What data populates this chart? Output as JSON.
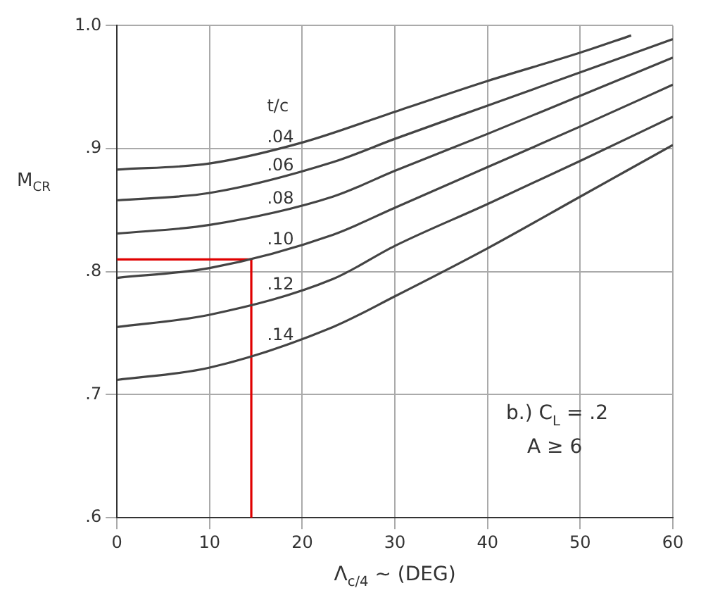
{
  "chart_data": {
    "type": "line",
    "xlabel": "Λ$_{c/4}$ ~ (DEG)",
    "ylabel": "M$_{CR}$",
    "legend_title": "t/c",
    "annotations": [
      "b.) C$_{L}$ = .2",
      "A ≥ 6"
    ],
    "series": [
      {
        "name": ".04",
        "color": "#444444",
        "x": [
          0,
          10,
          20,
          30,
          40,
          50,
          55.5
        ],
        "values": [
          0.883,
          0.888,
          0.905,
          0.93,
          0.955,
          0.978,
          0.992
        ]
      },
      {
        "name": ".06",
        "color": "#444444",
        "x": [
          0,
          10,
          23.3,
          30,
          40,
          50,
          60
        ],
        "values": [
          0.858,
          0.864,
          0.889,
          0.908,
          0.935,
          0.962,
          0.989
        ]
      },
      {
        "name": ".08",
        "color": "#444444",
        "x": [
          0,
          10,
          23.3,
          30,
          40,
          50,
          60
        ],
        "values": [
          0.831,
          0.838,
          0.861,
          0.882,
          0.912,
          0.943,
          0.974
        ]
      },
      {
        "name": ".10",
        "color": "#444444",
        "x": [
          0,
          10,
          23.3,
          30,
          40,
          50,
          60
        ],
        "values": [
          0.795,
          0.803,
          0.83,
          0.852,
          0.885,
          0.918,
          0.952
        ]
      },
      {
        "name": ".12",
        "color": "#444444",
        "x": [
          0,
          10,
          23.3,
          30,
          40,
          50,
          60
        ],
        "values": [
          0.755,
          0.765,
          0.794,
          0.821,
          0.855,
          0.89,
          0.926
        ]
      },
      {
        "name": ".14",
        "color": "#444444",
        "x": [
          0,
          10,
          23.3,
          30,
          40,
          50,
          60
        ],
        "values": [
          0.712,
          0.722,
          0.755,
          0.78,
          0.819,
          0.861,
          0.903
        ]
      },
      {
        "color": "#e00000",
        "x": [
          0,
          14.5,
          14.5
        ],
        "values": [
          0.81,
          0.81,
          0.6
        ]
      }
    ],
    "xlim": [
      0,
      60
    ],
    "xticks": [
      0,
      10,
      20,
      30,
      40,
      50,
      60
    ],
    "ylim": [
      0.6,
      1.0
    ],
    "yticks": [
      {
        "value": 0.6,
        "label": ".6"
      },
      {
        "value": 0.7,
        "label": ".7"
      },
      {
        "value": 0.8,
        "label": ".8"
      },
      {
        "value": 0.9,
        "label": ".9"
      },
      {
        "value": 1.0,
        "label": "1.0"
      }
    ],
    "grid": true,
    "marker": "none",
    "legend": false
  }
}
